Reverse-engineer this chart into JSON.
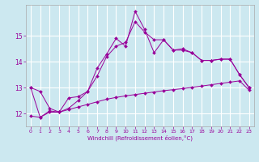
{
  "x": [
    0,
    1,
    2,
    3,
    4,
    5,
    6,
    7,
    8,
    9,
    10,
    11,
    12,
    13,
    14,
    15,
    16,
    17,
    18,
    19,
    20,
    21,
    22,
    23
  ],
  "line1": [
    13.0,
    12.85,
    12.2,
    12.05,
    12.6,
    12.65,
    12.85,
    13.45,
    14.2,
    14.6,
    14.75,
    15.55,
    15.15,
    14.85,
    14.85,
    14.45,
    14.45,
    14.35,
    14.05,
    14.05,
    14.1,
    14.1,
    13.5,
    13.0
  ],
  "line2": [
    13.0,
    11.85,
    12.1,
    12.05,
    12.2,
    12.5,
    12.85,
    13.75,
    14.3,
    14.9,
    14.6,
    15.95,
    15.25,
    14.35,
    14.85,
    14.45,
    14.5,
    14.35,
    14.05,
    14.05,
    14.1,
    14.1,
    13.5,
    13.0
  ],
  "line3": [
    11.9,
    11.85,
    12.05,
    12.05,
    12.15,
    12.25,
    12.35,
    12.45,
    12.55,
    12.62,
    12.68,
    12.73,
    12.78,
    12.83,
    12.88,
    12.92,
    12.96,
    13.01,
    13.06,
    13.11,
    13.16,
    13.21,
    13.26,
    12.9
  ],
  "background_color": "#cce8f0",
  "grid_color": "#ffffff",
  "line_color": "#990099",
  "marker": "D",
  "marker_size": 2,
  "xlabel": "Windchill (Refroidissement éolien,°C)",
  "ylim": [
    11.5,
    16.2
  ],
  "xlim": [
    -0.5,
    23.5
  ],
  "yticks": [
    12,
    13,
    14,
    15
  ],
  "xticks": [
    0,
    1,
    2,
    3,
    4,
    5,
    6,
    7,
    8,
    9,
    10,
    11,
    12,
    13,
    14,
    15,
    16,
    17,
    18,
    19,
    20,
    21,
    22,
    23
  ]
}
